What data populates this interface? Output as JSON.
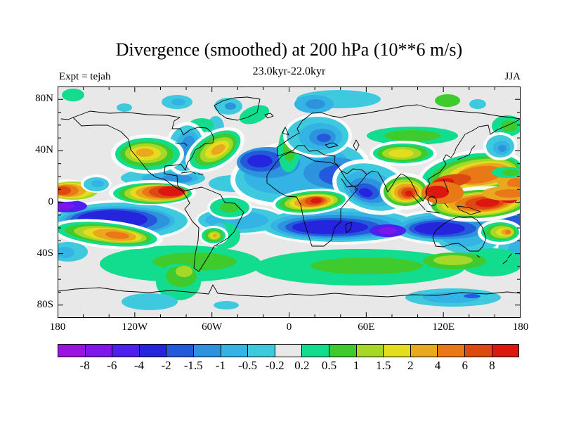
{
  "header": {
    "title": "Divergence (smoothed) at 200 hPa (10**6 m/s)",
    "subtitle": "23.0kyr-22.0kyr",
    "experiment_label": "Expt = tejah",
    "season_label": "JJA"
  },
  "map": {
    "background_color": "#E8E8E8",
    "frame_color": "#000000",
    "x_axis": {
      "ticks": [
        {
          "label": "180",
          "lon": -180
        },
        {
          "label": "120W",
          "lon": -120
        },
        {
          "label": "60W",
          "lon": -60
        },
        {
          "label": "0",
          "lon": 0
        },
        {
          "label": "60E",
          "lon": 60
        },
        {
          "label": "120E",
          "lon": 120
        },
        {
          "label": "180",
          "lon": 180
        }
      ],
      "major_step_deg": 60,
      "minor_step_deg": 20
    },
    "y_axis": {
      "ticks": [
        {
          "label": "80N",
          "lat": 80
        },
        {
          "label": "40N",
          "lat": 40
        },
        {
          "label": "0",
          "lat": 0
        },
        {
          "label": "40S",
          "lat": -40
        },
        {
          "label": "80S",
          "lat": -80
        }
      ],
      "major_step_deg": 40,
      "minor_step_deg": 10
    }
  },
  "colorbar": {
    "levels": [
      "-8",
      "-6",
      "-4",
      "-2",
      "-1.5",
      "-1",
      "-0.5",
      "-0.2",
      "0.2",
      "0.5",
      "1",
      "1.5",
      "2",
      "4",
      "6",
      "8"
    ],
    "colors": [
      "#9914DE",
      "#7D17EC",
      "#4F1FEE",
      "#2425DC",
      "#2559DC",
      "#2C93DC",
      "#33B4E4",
      "#3FC9DE",
      "#E8E8E8",
      "#12DC8E",
      "#3FCB2E",
      "#A6D828",
      "#E4DC1E",
      "#E9A81E",
      "#E97916",
      "#DC4A12",
      "#DC1710"
    ]
  },
  "chart_data": {
    "type": "heatmap",
    "subtype": "filled-contour global map, equirectangular projection, 180W-180E, 90S-90N",
    "title": "Divergence (smoothed) at 200 hPa (10**6 m/s)",
    "subtitle": "23.0kyr-22.0kyr",
    "experiment": "tejah",
    "season": "JJA",
    "units": "10**6 m/s",
    "x_ticks": [
      "180",
      "120W",
      "60W",
      "0",
      "60E",
      "120E",
      "180"
    ],
    "y_ticks": [
      "80N",
      "40N",
      "0",
      "40S",
      "80S"
    ],
    "contour_levels": [
      -8,
      -6,
      -4,
      -2,
      -1.5,
      -1,
      -0.5,
      -0.2,
      0.2,
      0.5,
      1,
      1.5,
      2,
      4,
      6,
      8
    ],
    "palette": [
      "#9914DE",
      "#7D17EC",
      "#4F1FEE",
      "#2425DC",
      "#2559DC",
      "#2C93DC",
      "#33B4E4",
      "#3FC9DE",
      "#E8E8E8",
      "#12DC8E",
      "#3FCB2E",
      "#A6D828",
      "#E4DC1E",
      "#E9A81E",
      "#E97916",
      "#DC4A12",
      "#DC1710"
    ],
    "legend_position": "bottom horizontal colorbar",
    "grid": false,
    "notable_features": [
      "strong divergence maximum (red, >8) near 5-10N over the eastern tropical Pacific ~150W-100W",
      "strong divergence (red) over equatorial Africa ~10E-30E",
      "large strong-divergence region (red/orange) over India, Southeast Asia and the maritime continent",
      "orange divergence cells along ~40N over western North America, eastern North America and East Asia",
      "broad convergence band (blue, < -2) spanning all longitudes ~0-20S with purple cores (< -6) near 175W, 65E and 170E",
      "deep blue convergence over the North Atlantic, Europe and Mediterranean ~30-50N",
      "orange band (2..6) near 30S over the southeast Pacific and east of Australia",
      "circumglobal weak-divergence green band 40S-60S",
      "near-neutral gray (-0.2..0.2) over polar regions and subtropical gaps"
    ]
  }
}
